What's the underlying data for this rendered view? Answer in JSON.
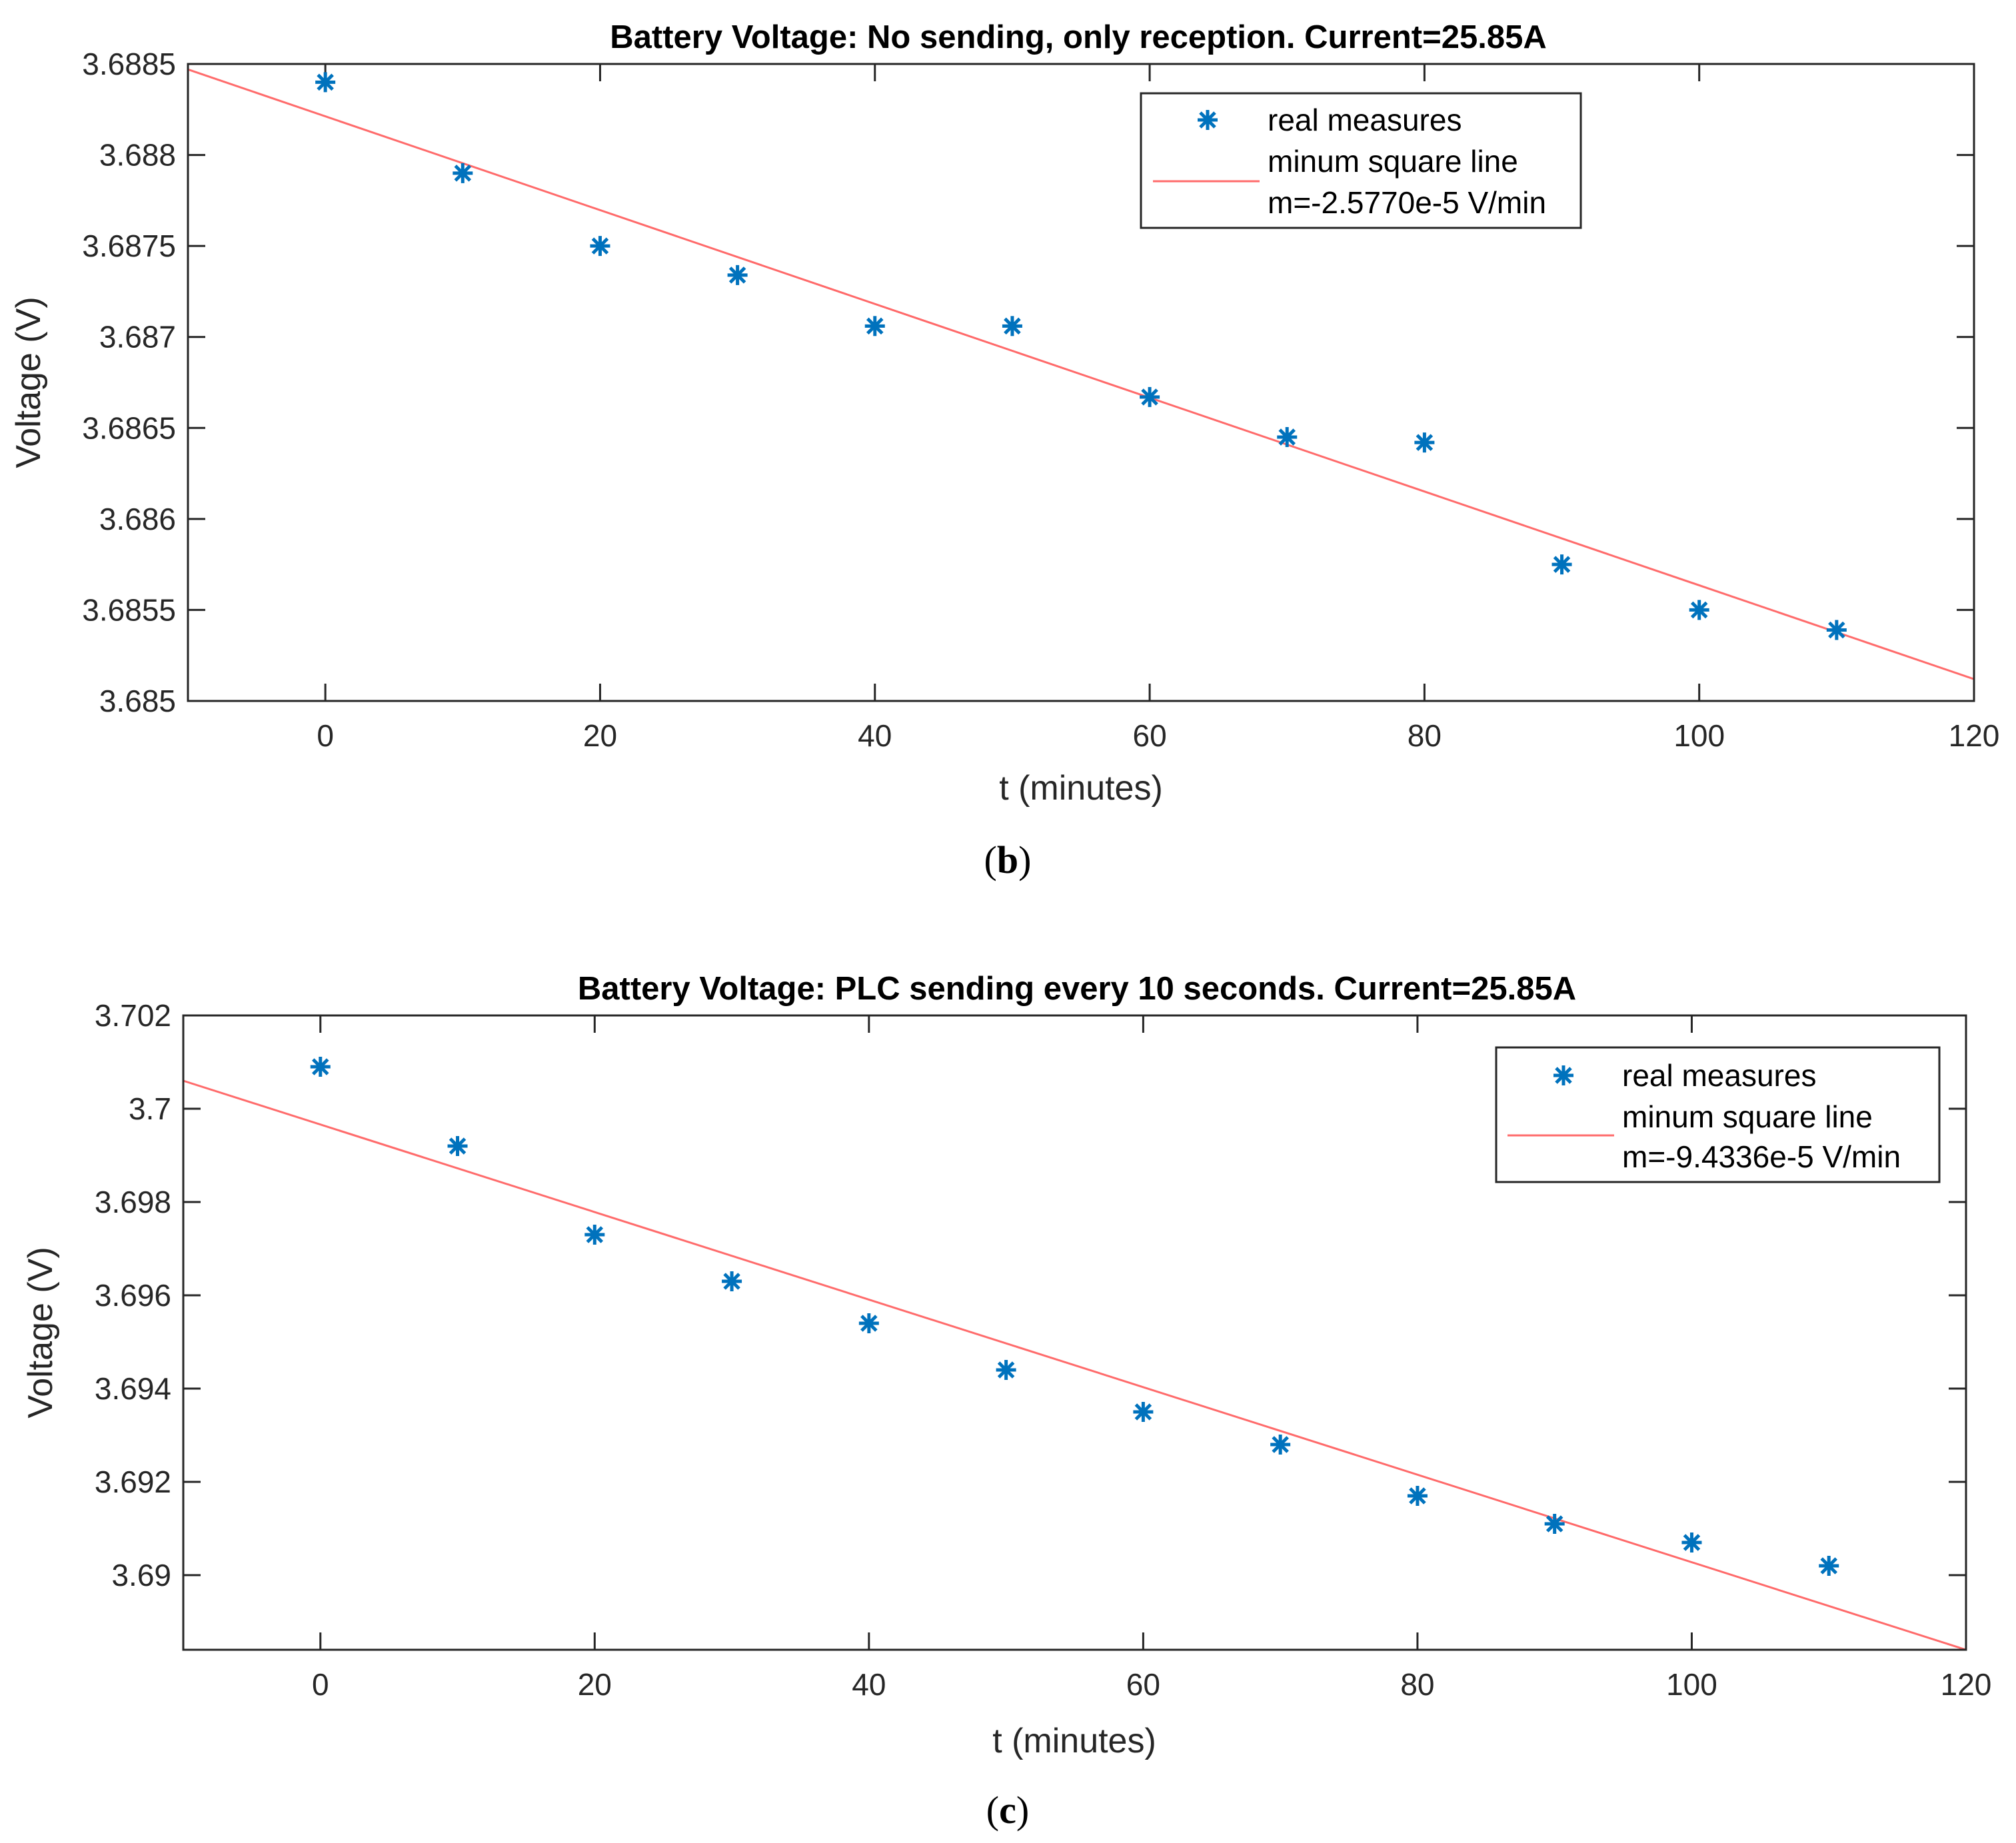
{
  "charts": {
    "b": {
      "panel_label": "(b)",
      "panel_letter": "b",
      "title": "Battery Voltage: No sending, only reception. Current=25.85A",
      "xlabel": "t (minutes)",
      "ylabel": "Voltage (V)",
      "x_ticks": [
        "0",
        "20",
        "40",
        "60",
        "80",
        "100",
        "120"
      ],
      "y_ticks": [
        "3.6885",
        "3.688",
        "3.6875",
        "3.687",
        "3.6865",
        "3.686",
        "3.6855",
        "3.685"
      ],
      "legend": {
        "scatter_label": "real measures",
        "line_label_1": "minum square line",
        "line_label_2": "m=-2.5770e-5 V/min"
      }
    },
    "c": {
      "panel_label": "(c)",
      "panel_letter": "c",
      "title": "Battery Voltage: PLC sending every 10 seconds. Current=25.85A",
      "xlabel": "t (minutes)",
      "ylabel": "Voltage (V)",
      "x_ticks": [
        "0",
        "20",
        "40",
        "60",
        "80",
        "100",
        "120"
      ],
      "y_ticks": [
        "3.702",
        "3.7",
        "3.698",
        "3.696",
        "3.694",
        "3.692",
        "3.69"
      ],
      "legend": {
        "scatter_label": "real measures",
        "line_label_1": "minum square line",
        "line_label_2": "m=-9.4336e-5 V/min"
      }
    }
  },
  "chart_data": [
    {
      "type": "scatter",
      "title": "Battery Voltage: No sending, only reception. Current=25.85A",
      "xlabel": "t (minutes)",
      "ylabel": "Voltage (V)",
      "xlim": [
        -10,
        120
      ],
      "ylim": [
        3.685,
        3.6885
      ],
      "x_ticks": [
        0,
        20,
        40,
        60,
        80,
        100,
        120
      ],
      "y_ticks": [
        3.685,
        3.6855,
        3.686,
        3.6865,
        3.687,
        3.6875,
        3.688,
        3.6885
      ],
      "grid": false,
      "legend_position": "top-right",
      "series": [
        {
          "name": "real measures",
          "type": "scatter",
          "color": "#0072BD",
          "marker": "asterisk",
          "x": [
            0,
            10,
            20,
            30,
            40,
            50,
            60,
            70,
            80,
            90,
            100,
            110
          ],
          "y": [
            3.6884,
            3.6879,
            3.6875,
            3.68734,
            3.68706,
            3.68706,
            3.68667,
            3.68645,
            3.68642,
            3.68575,
            3.6855,
            3.68539
          ]
        },
        {
          "name": "minum square line",
          "type": "line",
          "color": "#FF6B6B",
          "slope": -2.577e-05,
          "x": [
            -10,
            120
          ],
          "y": [
            3.68847,
            3.68512
          ]
        }
      ]
    },
    {
      "type": "scatter",
      "title": "Battery Voltage: PLC sending every 10 seconds. Current=25.85A",
      "xlabel": "t (minutes)",
      "ylabel": "Voltage (V)",
      "xlim": [
        -10,
        120
      ],
      "ylim": [
        3.6884,
        3.702
      ],
      "x_ticks": [
        0,
        20,
        40,
        60,
        80,
        100,
        120
      ],
      "y_ticks": [
        3.69,
        3.692,
        3.694,
        3.696,
        3.698,
        3.7,
        3.702
      ],
      "grid": false,
      "legend_position": "top-right",
      "series": [
        {
          "name": "real measures",
          "type": "scatter",
          "color": "#0072BD",
          "marker": "asterisk",
          "x": [
            0,
            10,
            20,
            30,
            40,
            50,
            60,
            70,
            80,
            90,
            100,
            110
          ],
          "y": [
            3.7009,
            3.6992,
            3.6973,
            3.6963,
            3.6954,
            3.6944,
            3.6935,
            3.6928,
            3.6917,
            3.6911,
            3.6907,
            3.6902
          ]
        },
        {
          "name": "minum square line",
          "type": "line",
          "color": "#FF6B6B",
          "slope": -9.4336e-05,
          "x": [
            -10,
            120
          ],
          "y": [
            3.7006,
            3.6884
          ]
        }
      ]
    }
  ]
}
